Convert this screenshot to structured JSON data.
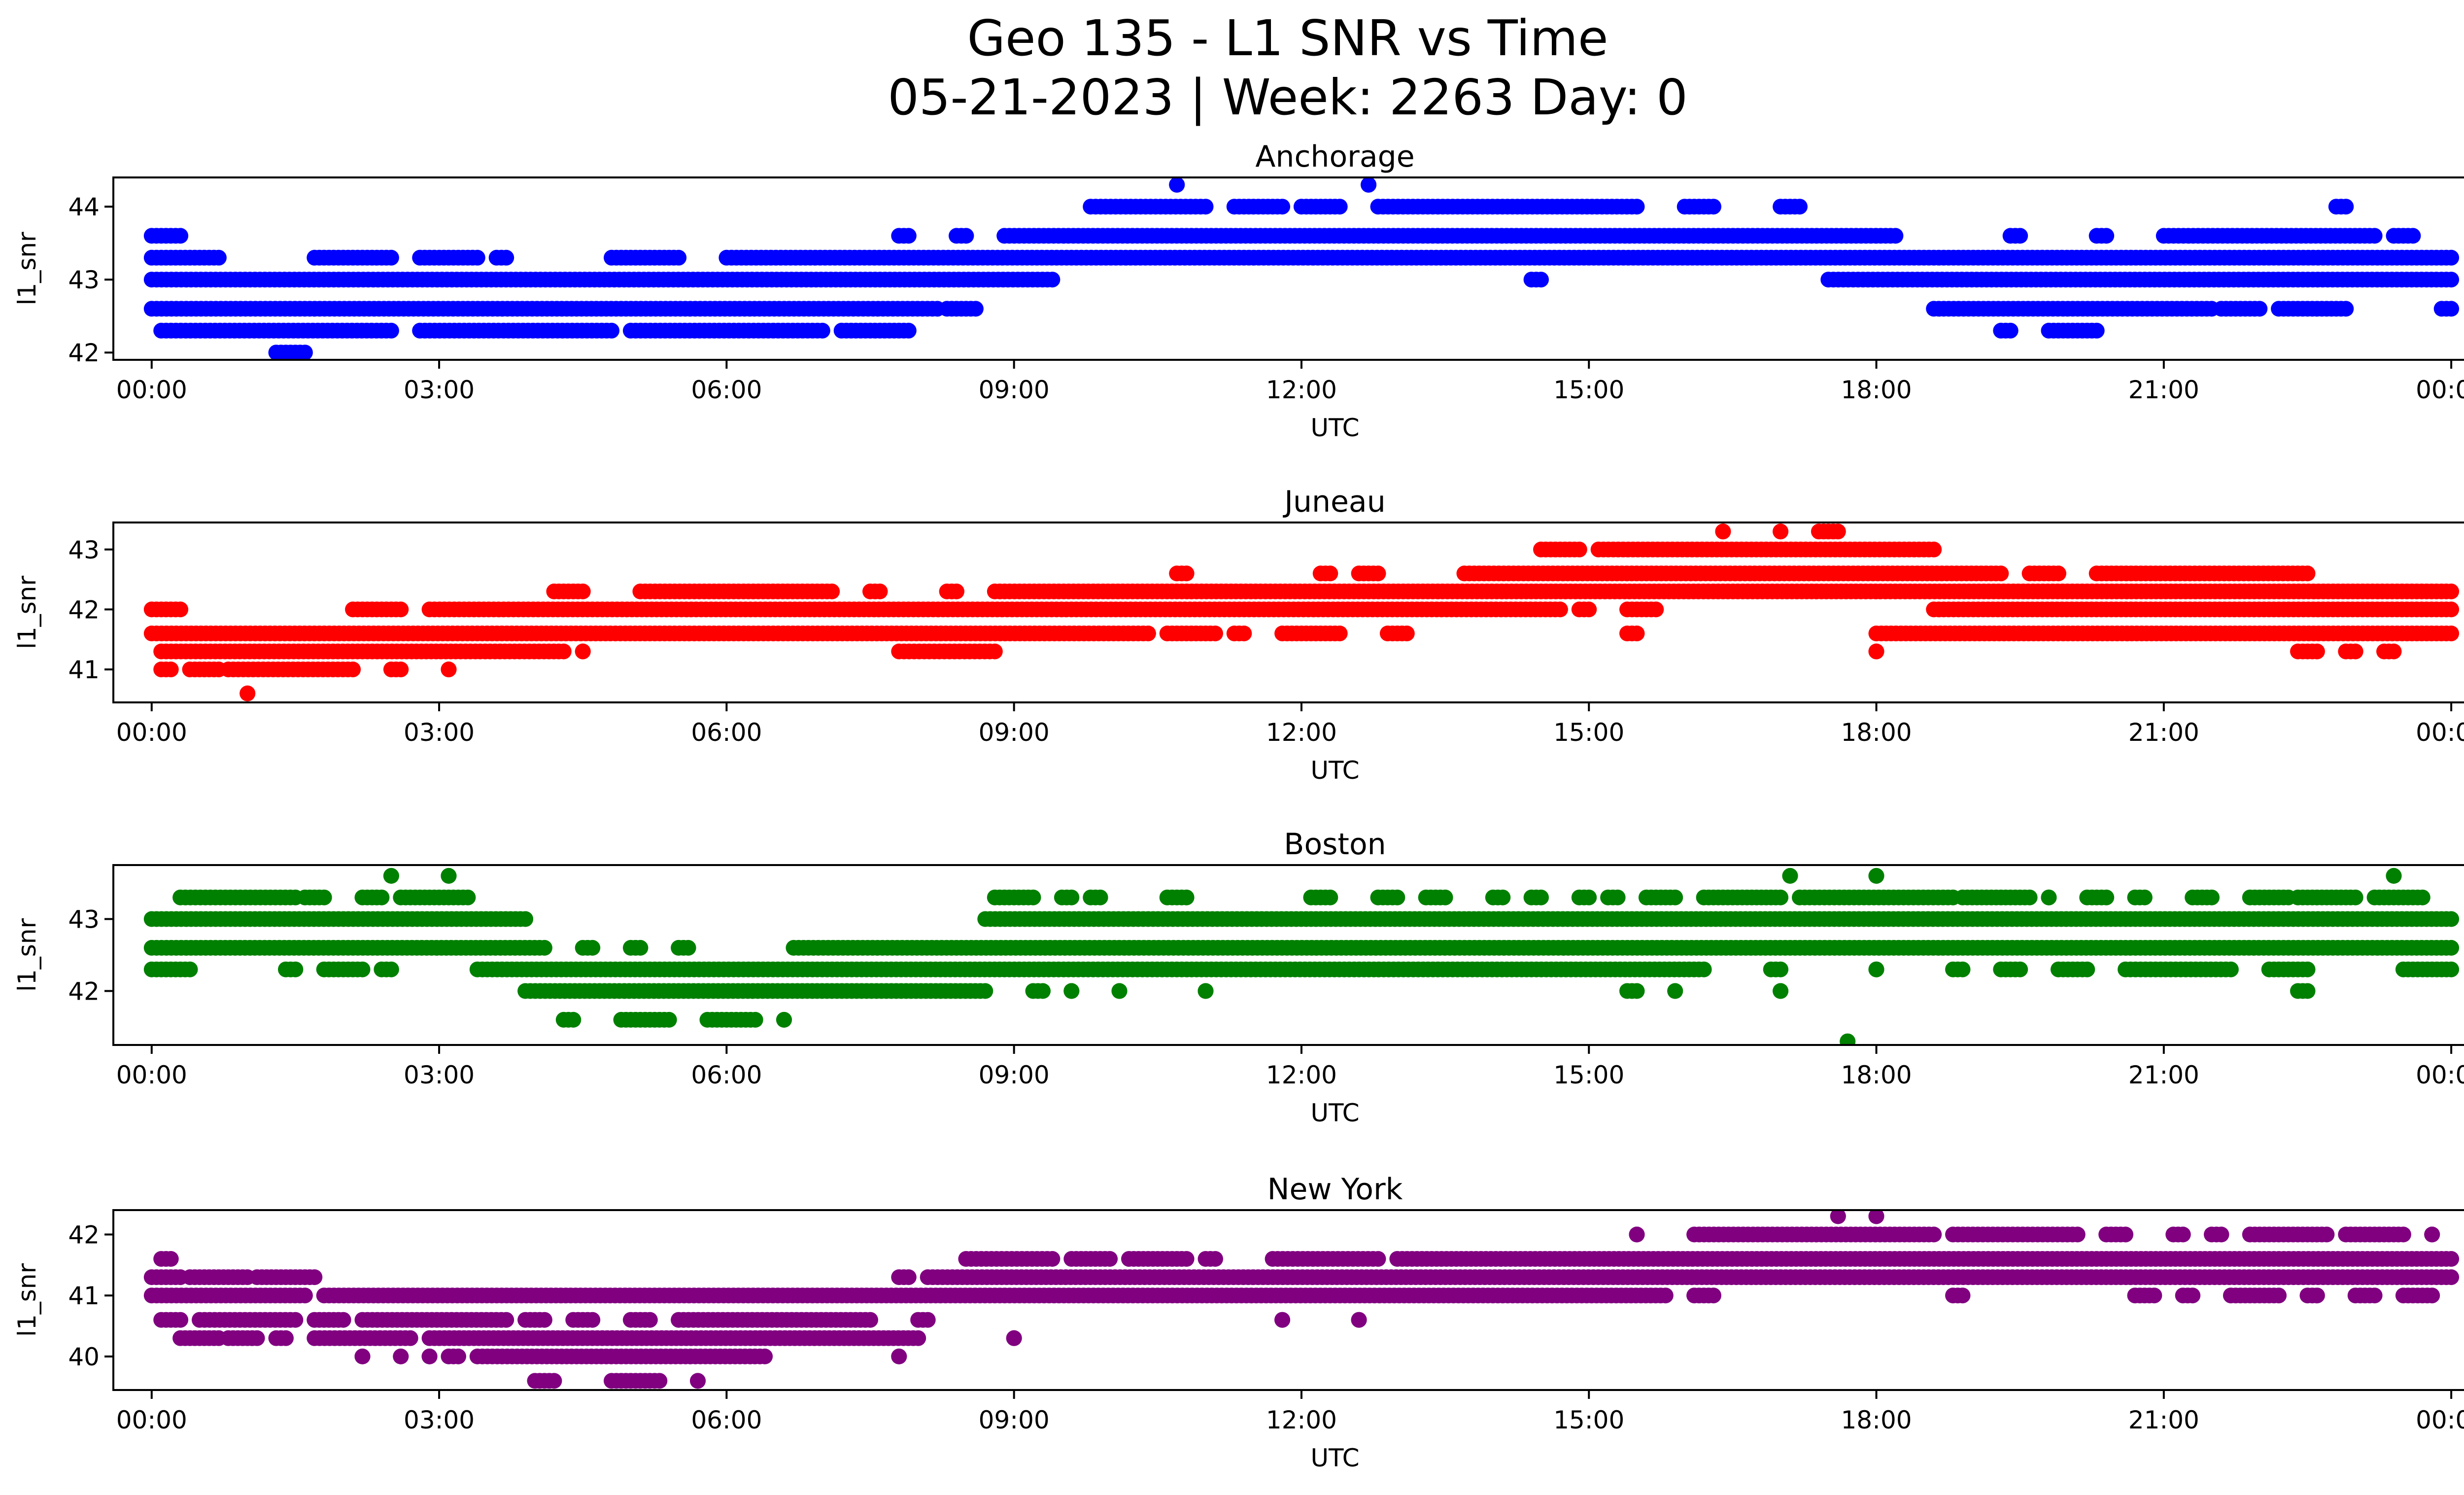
{
  "figure": {
    "title_line1": "Geo 135 - L1 SNR vs Time",
    "title_line2": "05-21-2023 | Week: 2263 Day: 0"
  },
  "chart_data": [
    {
      "type": "scatter",
      "title": "Anchorage",
      "xlabel": "UTC",
      "ylabel": "l1_snr",
      "color": "#0000ff",
      "xlim": [
        -0.4,
        25.1
      ],
      "ylim": [
        41.9,
        44.4
      ],
      "x_ticks": [
        0,
        3,
        6,
        9,
        12,
        15,
        18,
        21,
        24
      ],
      "x_tick_labels": [
        "00:00",
        "03:00",
        "06:00",
        "09:00",
        "12:00",
        "15:00",
        "18:00",
        "21:00",
        "00:00"
      ],
      "y_ticks": [
        42,
        43,
        44
      ],
      "bands": [
        {
          "y": 42.0,
          "x": [
            [
              1.3,
              1.6
            ]
          ]
        },
        {
          "y": 42.3,
          "x": [
            [
              0.1,
              2.5
            ],
            [
              2.8,
              4.8
            ],
            [
              5.0,
              7.0
            ],
            [
              7.2,
              7.9
            ],
            [
              19.3,
              19.4
            ],
            [
              19.8,
              20.3
            ]
          ]
        },
        {
          "y": 42.6,
          "x": [
            [
              0.0,
              8.2
            ],
            [
              8.3,
              8.6
            ],
            [
              18.6,
              21.5
            ],
            [
              21.6,
              22.0
            ],
            [
              22.2,
              22.9
            ],
            [
              23.9,
              24.0
            ]
          ]
        },
        {
          "y": 43.0,
          "x": [
            [
              0.0,
              9.4
            ],
            [
              14.4,
              14.5
            ],
            [
              17.5,
              24.0
            ]
          ]
        },
        {
          "y": 43.3,
          "x": [
            [
              0.0,
              0.7
            ],
            [
              1.7,
              2.5
            ],
            [
              2.8,
              3.4
            ],
            [
              3.6,
              3.7
            ],
            [
              4.8,
              5.5
            ],
            [
              6.0,
              24.0
            ]
          ]
        },
        {
          "y": 43.6,
          "x": [
            [
              0.0,
              0.3
            ],
            [
              7.8,
              7.9
            ],
            [
              8.4,
              8.5
            ],
            [
              8.9,
              18.2
            ],
            [
              19.4,
              19.5
            ],
            [
              20.3,
              20.4
            ],
            [
              21.0,
              23.2
            ],
            [
              23.4,
              23.6
            ]
          ]
        },
        {
          "y": 44.0,
          "x": [
            [
              9.8,
              11.0
            ],
            [
              11.3,
              11.8
            ],
            [
              12.0,
              12.4
            ],
            [
              12.8,
              15.5
            ],
            [
              16.0,
              16.3
            ],
            [
              17.0,
              17.2
            ],
            [
              22.8,
              22.9
            ]
          ]
        },
        {
          "y": 44.3,
          "x": [
            [
              10.7,
              10.7
            ],
            [
              12.7,
              12.7
            ]
          ]
        }
      ]
    },
    {
      "type": "scatter",
      "title": "Juneau",
      "xlabel": "UTC",
      "ylabel": "l1_snr",
      "color": "#ff0000",
      "xlim": [
        -0.4,
        25.1
      ],
      "ylim": [
        40.45,
        43.45
      ],
      "x_ticks": [
        0,
        3,
        6,
        9,
        12,
        15,
        18,
        21,
        24
      ],
      "x_tick_labels": [
        "00:00",
        "03:00",
        "06:00",
        "09:00",
        "12:00",
        "15:00",
        "18:00",
        "21:00",
        "00:00"
      ],
      "y_ticks": [
        41,
        42,
        43
      ],
      "bands": [
        {
          "y": 40.6,
          "x": [
            [
              1.0,
              1.0
            ]
          ]
        },
        {
          "y": 41.0,
          "x": [
            [
              0.1,
              0.2
            ],
            [
              0.4,
              0.7
            ],
            [
              0.8,
              2.1
            ],
            [
              2.5,
              2.6
            ],
            [
              3.1,
              3.1
            ]
          ]
        },
        {
          "y": 41.3,
          "x": [
            [
              0.1,
              4.3
            ],
            [
              4.5,
              4.5
            ],
            [
              7.8,
              8.8
            ],
            [
              18.0,
              18.0
            ],
            [
              22.4,
              22.6
            ],
            [
              22.9,
              23.0
            ],
            [
              23.3,
              23.4
            ]
          ]
        },
        {
          "y": 41.6,
          "x": [
            [
              0.0,
              10.4
            ],
            [
              10.6,
              11.1
            ],
            [
              11.3,
              11.4
            ],
            [
              11.8,
              12.4
            ],
            [
              12.9,
              13.1
            ],
            [
              15.4,
              15.5
            ],
            [
              18.0,
              24.0
            ]
          ]
        },
        {
          "y": 42.0,
          "x": [
            [
              0.0,
              0.3
            ],
            [
              2.1,
              2.6
            ],
            [
              2.9,
              14.7
            ],
            [
              14.9,
              15.0
            ],
            [
              15.4,
              15.7
            ],
            [
              18.6,
              24.0
            ]
          ]
        },
        {
          "y": 42.3,
          "x": [
            [
              4.2,
              4.5
            ],
            [
              5.1,
              7.1
            ],
            [
              7.5,
              7.6
            ],
            [
              8.3,
              8.4
            ],
            [
              8.8,
              24.0
            ]
          ]
        },
        {
          "y": 42.6,
          "x": [
            [
              10.7,
              10.8
            ],
            [
              12.2,
              12.3
            ],
            [
              12.6,
              12.8
            ],
            [
              13.7,
              19.3
            ],
            [
              19.6,
              19.9
            ],
            [
              20.3,
              22.5
            ]
          ]
        },
        {
          "y": 43.0,
          "x": [
            [
              14.5,
              14.9
            ],
            [
              15.1,
              18.6
            ]
          ]
        },
        {
          "y": 43.3,
          "x": [
            [
              16.4,
              16.4
            ],
            [
              17.0,
              17.0
            ],
            [
              17.4,
              17.6
            ]
          ]
        }
      ]
    },
    {
      "type": "scatter",
      "title": "Boston",
      "xlabel": "UTC",
      "ylabel": "l1_snr",
      "color": "#008000",
      "xlim": [
        -0.4,
        25.1
      ],
      "ylim": [
        41.25,
        43.75
      ],
      "x_ticks": [
        0,
        3,
        6,
        9,
        12,
        15,
        18,
        21,
        24
      ],
      "x_tick_labels": [
        "00:00",
        "03:00",
        "06:00",
        "09:00",
        "12:00",
        "15:00",
        "18:00",
        "21:00",
        "00:00"
      ],
      "y_ticks": [
        42,
        43
      ],
      "bands": [
        {
          "y": 41.3,
          "x": [
            [
              17.7,
              17.7
            ]
          ]
        },
        {
          "y": 41.6,
          "x": [
            [
              4.3,
              4.4
            ],
            [
              4.9,
              5.4
            ],
            [
              5.8,
              6.3
            ],
            [
              6.6,
              6.6
            ]
          ]
        },
        {
          "y": 42.0,
          "x": [
            [
              3.9,
              8.7
            ],
            [
              9.2,
              9.3
            ],
            [
              9.6,
              9.6
            ],
            [
              10.1,
              10.1
            ],
            [
              11.0,
              11.0
            ],
            [
              15.4,
              15.5
            ],
            [
              15.9,
              15.9
            ],
            [
              17.0,
              17.0
            ],
            [
              22.4,
              22.5
            ]
          ]
        },
        {
          "y": 42.3,
          "x": [
            [
              0.0,
              0.4
            ],
            [
              1.4,
              1.5
            ],
            [
              1.8,
              2.2
            ],
            [
              2.4,
              2.5
            ],
            [
              3.4,
              16.2
            ],
            [
              16.9,
              17.0
            ],
            [
              18.0,
              18.0
            ],
            [
              18.8,
              18.9
            ],
            [
              19.3,
              19.5
            ],
            [
              19.9,
              20.2
            ],
            [
              20.6,
              21.7
            ],
            [
              22.1,
              22.5
            ],
            [
              23.5,
              24.0
            ]
          ]
        },
        {
          "y": 42.6,
          "x": [
            [
              0.0,
              4.1
            ],
            [
              4.5,
              4.6
            ],
            [
              5.0,
              5.1
            ],
            [
              5.5,
              5.6
            ],
            [
              6.7,
              24.0
            ]
          ]
        },
        {
          "y": 43.0,
          "x": [
            [
              0.0,
              3.9
            ],
            [
              8.7,
              24.0
            ]
          ]
        },
        {
          "y": 43.3,
          "x": [
            [
              0.3,
              1.5
            ],
            [
              1.6,
              1.8
            ],
            [
              2.2,
              2.4
            ],
            [
              2.6,
              3.3
            ],
            [
              8.8,
              9.2
            ],
            [
              9.5,
              9.6
            ],
            [
              9.8,
              9.9
            ],
            [
              10.6,
              10.8
            ],
            [
              12.1,
              12.3
            ],
            [
              12.8,
              13.0
            ],
            [
              13.3,
              13.5
            ],
            [
              14.0,
              14.1
            ],
            [
              14.4,
              14.5
            ],
            [
              14.9,
              15.0
            ],
            [
              15.2,
              15.3
            ],
            [
              15.6,
              15.9
            ],
            [
              16.2,
              17.0
            ],
            [
              17.2,
              18.8
            ],
            [
              18.9,
              19.6
            ],
            [
              19.8,
              19.8
            ],
            [
              20.2,
              20.4
            ],
            [
              20.7,
              20.8
            ],
            [
              21.3,
              21.5
            ],
            [
              21.9,
              22.3
            ],
            [
              22.4,
              23.0
            ],
            [
              23.2,
              23.7
            ]
          ]
        },
        {
          "y": 43.6,
          "x": [
            [
              2.5,
              2.5
            ],
            [
              3.1,
              3.1
            ],
            [
              17.1,
              17.1
            ],
            [
              18.0,
              18.0
            ],
            [
              23.4,
              23.4
            ]
          ]
        }
      ]
    },
    {
      "type": "scatter",
      "title": "New York",
      "xlabel": "UTC",
      "ylabel": "l1_snr",
      "color": "#800080",
      "xlim": [
        -0.4,
        25.1
      ],
      "ylim": [
        39.45,
        42.4
      ],
      "x_ticks": [
        0,
        3,
        6,
        9,
        12,
        15,
        18,
        21,
        24
      ],
      "x_tick_labels": [
        "00:00",
        "03:00",
        "06:00",
        "09:00",
        "12:00",
        "15:00",
        "18:00",
        "21:00",
        "00:00"
      ],
      "y_ticks": [
        40,
        41,
        42
      ],
      "bands": [
        {
          "y": 39.6,
          "x": [
            [
              4.0,
              4.2
            ],
            [
              4.8,
              5.3
            ],
            [
              5.7,
              5.7
            ]
          ]
        },
        {
          "y": 40.0,
          "x": [
            [
              2.2,
              2.2
            ],
            [
              2.6,
              2.6
            ],
            [
              2.9,
              2.9
            ],
            [
              3.1,
              3.2
            ],
            [
              3.4,
              6.4
            ],
            [
              7.8,
              7.8
            ]
          ]
        },
        {
          "y": 40.3,
          "x": [
            [
              0.3,
              0.7
            ],
            [
              0.8,
              1.1
            ],
            [
              1.3,
              1.4
            ],
            [
              1.7,
              2.7
            ],
            [
              2.9,
              8.0
            ],
            [
              9.0,
              9.0
            ]
          ]
        },
        {
          "y": 40.6,
          "x": [
            [
              0.1,
              0.3
            ],
            [
              0.5,
              1.5
            ],
            [
              1.7,
              2.0
            ],
            [
              2.2,
              3.7
            ],
            [
              3.9,
              4.1
            ],
            [
              4.4,
              4.6
            ],
            [
              5.0,
              5.2
            ],
            [
              5.5,
              7.5
            ],
            [
              8.0,
              8.1
            ],
            [
              11.8,
              11.8
            ],
            [
              12.6,
              12.6
            ]
          ]
        },
        {
          "y": 41.0,
          "x": [
            [
              0.0,
              1.6
            ],
            [
              1.8,
              15.8
            ],
            [
              16.1,
              16.3
            ],
            [
              18.8,
              18.9
            ],
            [
              20.7,
              20.9
            ],
            [
              21.2,
              21.3
            ],
            [
              21.7,
              22.2
            ],
            [
              22.5,
              22.6
            ],
            [
              23.0,
              23.2
            ],
            [
              23.5,
              23.8
            ]
          ]
        },
        {
          "y": 41.3,
          "x": [
            [
              0.0,
              0.3
            ],
            [
              0.4,
              1.0
            ],
            [
              1.1,
              1.7
            ],
            [
              7.8,
              7.9
            ],
            [
              8.1,
              24.0
            ]
          ]
        },
        {
          "y": 41.6,
          "x": [
            [
              0.1,
              0.2
            ],
            [
              8.5,
              9.4
            ],
            [
              9.6,
              10.0
            ],
            [
              10.2,
              10.8
            ],
            [
              11.0,
              11.1
            ],
            [
              11.7,
              12.8
            ],
            [
              13.0,
              24.0
            ]
          ]
        },
        {
          "y": 42.0,
          "x": [
            [
              15.5,
              15.5
            ],
            [
              16.1,
              18.6
            ],
            [
              18.8,
              20.1
            ],
            [
              20.4,
              20.6
            ],
            [
              21.1,
              21.2
            ],
            [
              21.5,
              21.6
            ],
            [
              21.9,
              22.7
            ],
            [
              22.9,
              23.5
            ],
            [
              23.8,
              23.8
            ]
          ]
        },
        {
          "y": 42.3,
          "x": [
            [
              17.6,
              17.6
            ],
            [
              18.0,
              18.0
            ]
          ]
        }
      ]
    }
  ]
}
